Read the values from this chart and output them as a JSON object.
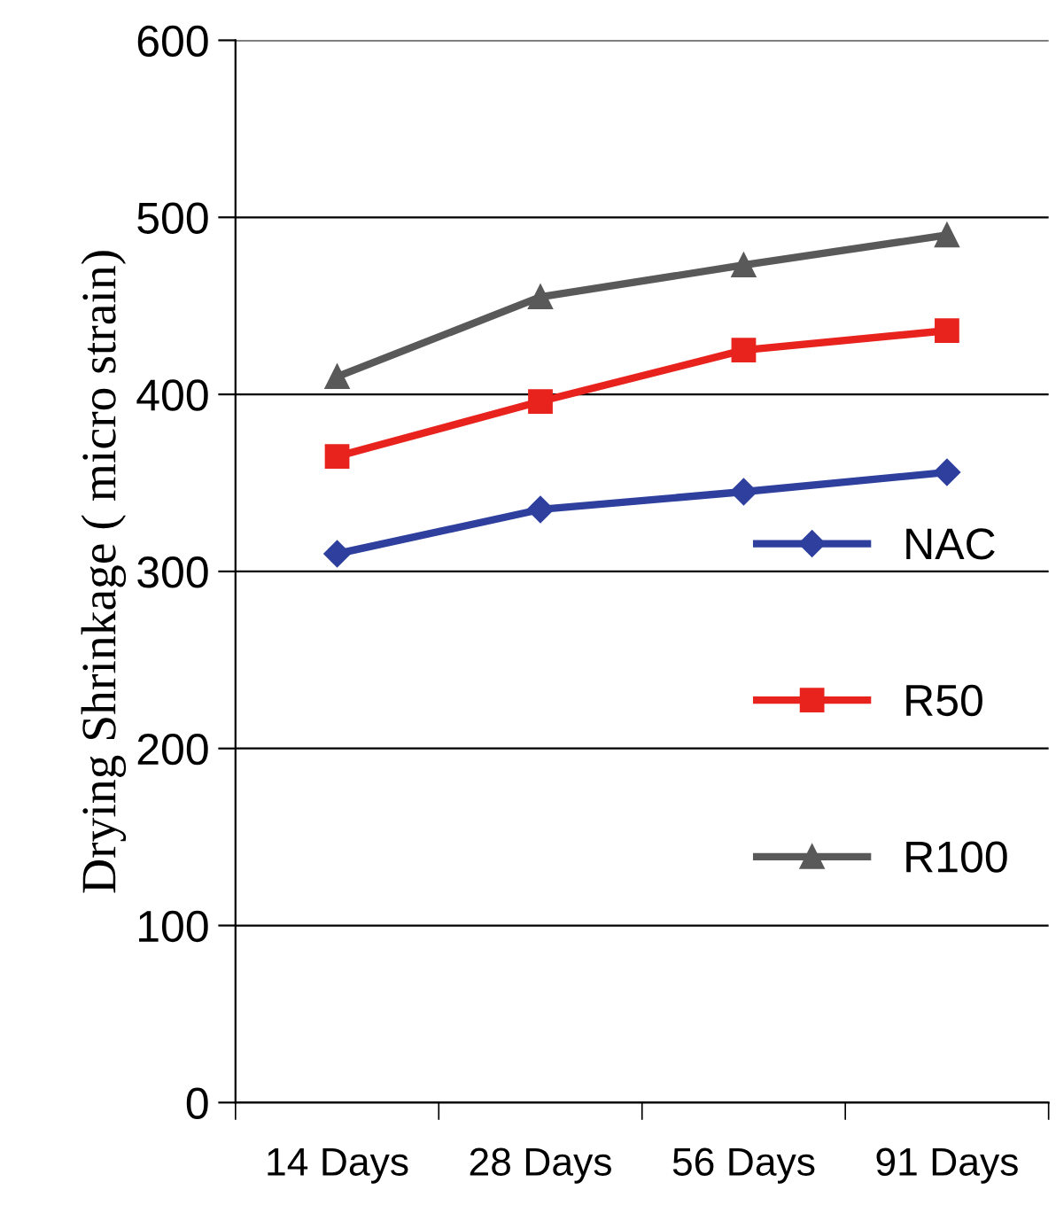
{
  "chart_data": {
    "type": "line",
    "ylabel": "Drying Shrinkage ( micro strain)",
    "categories": [
      "14 Days",
      "28 Days",
      "56 Days",
      "91 Days"
    ],
    "series": [
      {
        "name": "NAC",
        "color": "#2e3f9e",
        "values": [
          310,
          335,
          345,
          356
        ],
        "marker": "diamond"
      },
      {
        "name": "R50",
        "color": "#e8231e",
        "values": [
          365,
          396,
          425,
          436
        ],
        "marker": "square"
      },
      {
        "name": "R100",
        "color": "#595959",
        "values": [
          410,
          455,
          473,
          490
        ],
        "marker": "triangle"
      }
    ],
    "ylim": [
      0,
      600
    ],
    "yticks": [
      0,
      100,
      200,
      300,
      400,
      500,
      600
    ],
    "grid": "y",
    "legend": "right",
    "line_style": "solid"
  }
}
